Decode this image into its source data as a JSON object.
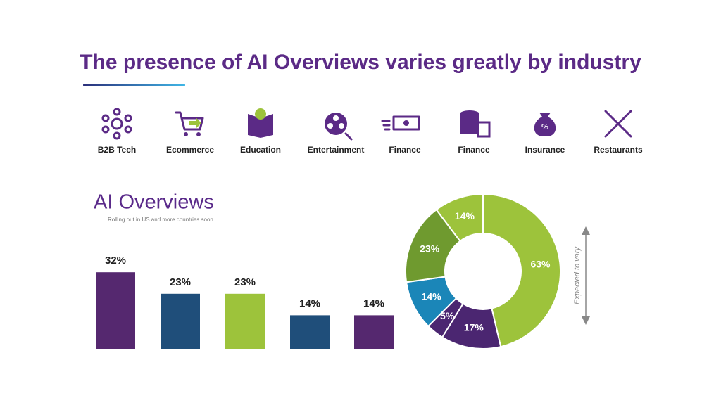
{
  "header": {
    "title": "The presence of AI Overviews varies greatly by industry"
  },
  "industries": [
    "B2B Tech",
    "Ecommerce",
    "Education",
    "Entertainment",
    "Finance",
    "Finance",
    "Insurance",
    "Restaurants"
  ],
  "chart_data": [
    {
      "type": "bar",
      "title": "AI Overviews",
      "subtitle": "Rolling out in US and more countries soon",
      "values": [
        32,
        23,
        23,
        14,
        14
      ],
      "value_labels": [
        "32%",
        "23%",
        "23%",
        "14%",
        "14%"
      ],
      "colors": [
        "#55286f",
        "#1f4e7a",
        "#9dc33b",
        "#1f4e7a",
        "#55286f"
      ]
    },
    {
      "type": "pie",
      "annotation": "Expected to vary",
      "values": [
        63,
        17,
        5,
        14,
        23,
        14
      ],
      "value_labels": [
        "63%",
        "17%",
        "5%",
        "14%",
        "23%",
        "14%"
      ],
      "colors": [
        "#9dc33b",
        "#4b2671",
        "#4b2671",
        "#1b86b8",
        "#6f9a2f",
        "#9dc33b"
      ]
    }
  ]
}
